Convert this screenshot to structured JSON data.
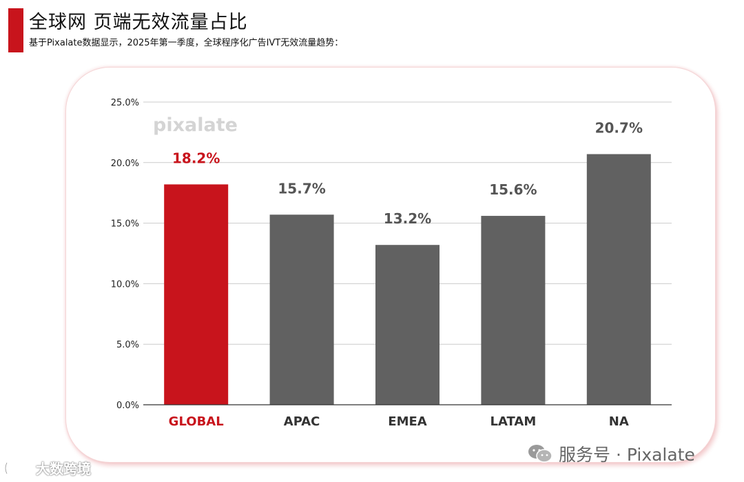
{
  "title": "全球网 页端无效流量占比",
  "subtitle": "基于Pixalate数据显示，2025年第一季度，全球程序化广告IVT无效流量趋势：",
  "watermark": "pixalate",
  "footer": {
    "label": "服务号 · Pixalate",
    "icon": "wechat-icon"
  },
  "source_logo": {
    "label": "大数跨境",
    "icon": "source-logo-icon"
  },
  "colors": {
    "accent": "#c8141c",
    "bar_default": "#616161",
    "bar_highlight": "#c8141c",
    "label_default": "#555555",
    "grid": "#cccccc"
  },
  "chart_data": {
    "type": "bar",
    "categories": [
      "GLOBAL",
      "APAC",
      "EMEA",
      "LATAM",
      "NA"
    ],
    "values": [
      18.2,
      15.7,
      13.2,
      15.6,
      20.7
    ],
    "value_labels": [
      "18.2%",
      "15.7%",
      "13.2%",
      "15.6%",
      "20.7%"
    ],
    "highlight_category": "GLOBAL",
    "y_ticks": [
      "0.0%",
      "5.0%",
      "10.0%",
      "15.0%",
      "20.0%",
      "25.0%"
    ],
    "ylim": [
      0,
      25
    ],
    "grid": true,
    "xlabel": "",
    "ylabel": ""
  }
}
